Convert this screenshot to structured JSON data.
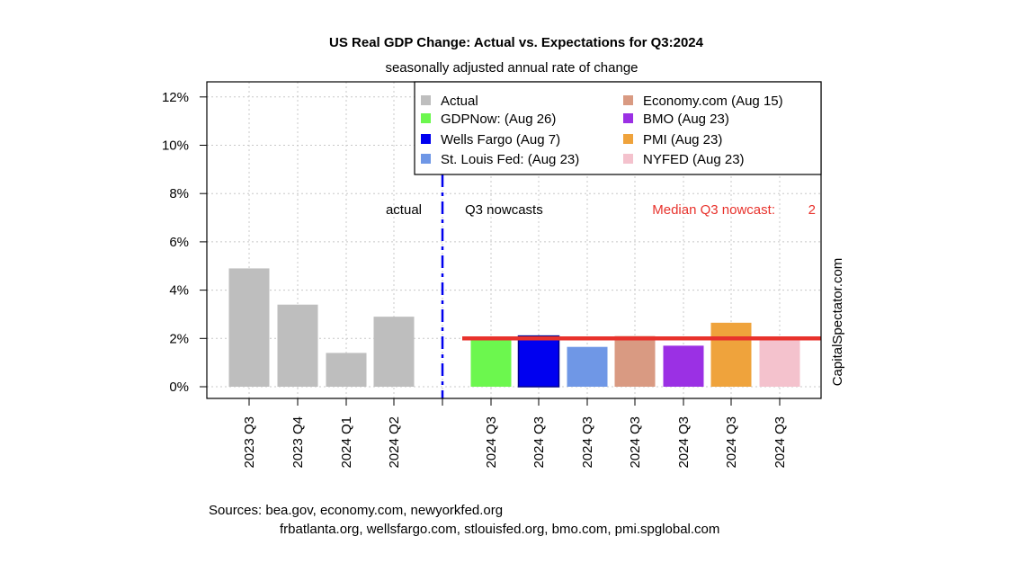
{
  "chart_data": {
    "type": "bar",
    "title": "US Real GDP Change: Actual vs. Expectations for Q3:2024",
    "subtitle": "seasonally adjusted annual rate of change",
    "categories": [
      "2023 Q3",
      "2023 Q4",
      "2024 Q1",
      "2024 Q2",
      "2024 Q3",
      "2024 Q3",
      "2024 Q3",
      "2024 Q3",
      "2024 Q3",
      "2024 Q3",
      "2024 Q3"
    ],
    "bars": [
      {
        "series": "Actual",
        "category": "2023 Q3",
        "value": 4.9
      },
      {
        "series": "Actual",
        "category": "2023 Q4",
        "value": 3.4
      },
      {
        "series": "Actual",
        "category": "2024 Q1",
        "value": 1.4
      },
      {
        "series": "Actual",
        "category": "2024 Q2",
        "value": 2.9
      },
      {
        "series": "GDPNow: (Aug 26)",
        "category": "2024 Q3",
        "value": 2.0
      },
      {
        "series": "Wells Fargo (Aug 7)",
        "category": "2024 Q3",
        "value": 2.1
      },
      {
        "series": "St. Louis Fed: (Aug 23)",
        "category": "2024 Q3",
        "value": 1.65
      },
      {
        "series": "Economy.com (Aug 15)",
        "category": "2024 Q3",
        "value": 2.1
      },
      {
        "series": "BMO (Aug 23)",
        "category": "2024 Q3",
        "value": 1.7
      },
      {
        "series": "PMI (Aug 23)",
        "category": "2024 Q3",
        "value": 2.65
      },
      {
        "series": "NYFED (Aug 23)",
        "category": "2024 Q3",
        "value": 2.0
      }
    ],
    "legend": [
      {
        "name": "Actual",
        "color": "#bebebe"
      },
      {
        "name": "GDPNow: (Aug 26)",
        "color": "#6cf74e"
      },
      {
        "name": "Wells Fargo (Aug 7)",
        "color": "#0000f0"
      },
      {
        "name": "St. Louis Fed: (Aug 23)",
        "color": "#6f97e6"
      },
      {
        "name": "Economy.com (Aug 15)",
        "color": "#d99a82"
      },
      {
        "name": "BMO (Aug 23)",
        "color": "#9b30e4"
      },
      {
        "name": "PMI (Aug 23)",
        "color": "#efa33c"
      },
      {
        "name": "NYFED (Aug 23)",
        "color": "#f4c2cd"
      }
    ],
    "legend_position": "top-right",
    "yticks": [
      "0%",
      "2%",
      "4%",
      "6%",
      "8%",
      "10%",
      "12%"
    ],
    "ylim": [
      -0.6,
      12.4
    ],
    "grid": true,
    "median_line": {
      "value": 2.0,
      "color": "#e8322c"
    },
    "annotations": {
      "actual": "actual",
      "nowcasts": "Q3 nowcasts",
      "median_label": "Median Q3 nowcast:",
      "median_value": "2"
    },
    "watermark": "CapitalSpectator.com"
  },
  "sources": {
    "line1": "Sources: bea.gov, economy.com, newyorkfed.org",
    "line2": "frbatlanta.org, wellsfargo.com, stlouisfed.org, bmo.com, pmi.spglobal.com"
  }
}
